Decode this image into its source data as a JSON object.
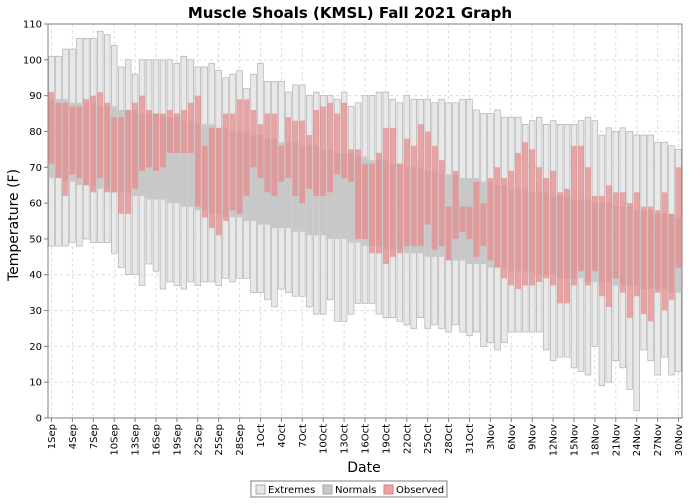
{
  "chart_data": {
    "type": "bar",
    "title": "Muscle Shoals (KMSL) Fall 2021 Graph",
    "xlabel": "Date",
    "ylabel": "Temperature (F)",
    "ylim": [
      0,
      110
    ],
    "yticks": [
      0,
      10,
      20,
      30,
      40,
      50,
      60,
      70,
      80,
      90,
      100,
      110
    ],
    "grid": true,
    "legend_position": "bottom-center",
    "colors": {
      "extremes_fill": "#e8e8e8",
      "extremes_stroke": "#a8a8a8",
      "normals_fill": "#c8c8c8",
      "observed_fill": "#e88888",
      "observed_opacity": 0.7,
      "grid": "#dcdcdc"
    },
    "categories": [
      "1Sep",
      "2Sep",
      "3Sep",
      "4Sep",
      "5Sep",
      "6Sep",
      "7Sep",
      "8Sep",
      "9Sep",
      "10Sep",
      "11Sep",
      "12Sep",
      "13Sep",
      "14Sep",
      "15Sep",
      "16Sep",
      "17Sep",
      "18Sep",
      "19Sep",
      "20Sep",
      "21Sep",
      "22Sep",
      "23Sep",
      "24Sep",
      "25Sep",
      "26Sep",
      "27Sep",
      "28Sep",
      "29Sep",
      "30Sep",
      "1Oct",
      "2Oct",
      "3Oct",
      "4Oct",
      "5Oct",
      "6Oct",
      "7Oct",
      "8Oct",
      "9Oct",
      "10Oct",
      "11Oct",
      "12Oct",
      "13Oct",
      "14Oct",
      "15Oct",
      "16Oct",
      "17Oct",
      "18Oct",
      "19Oct",
      "20Oct",
      "21Oct",
      "22Oct",
      "23Oct",
      "24Oct",
      "25Oct",
      "26Oct",
      "27Oct",
      "28Oct",
      "29Oct",
      "30Oct",
      "31Oct",
      "1Nov",
      "2Nov",
      "3Nov",
      "4Nov",
      "5Nov",
      "6Nov",
      "7Nov",
      "8Nov",
      "9Nov",
      "10Nov",
      "11Nov",
      "12Nov",
      "13Nov",
      "14Nov",
      "15Nov",
      "16Nov",
      "17Nov",
      "18Nov",
      "19Nov",
      "20Nov",
      "21Nov",
      "22Nov",
      "23Nov",
      "24Nov",
      "25Nov",
      "26Nov",
      "27Nov",
      "28Nov",
      "29Nov",
      "30Nov"
    ],
    "xtick_labels": [
      "1Sep",
      "4Sep",
      "7Sep",
      "10Sep",
      "13Sep",
      "16Sep",
      "19Sep",
      "22Sep",
      "25Sep",
      "28Sep",
      "1Oct",
      "4Oct",
      "7Oct",
      "10Oct",
      "13Oct",
      "16Oct",
      "19Oct",
      "22Oct",
      "25Oct",
      "28Oct",
      "31Oct",
      "3Nov",
      "6Nov",
      "9Nov",
      "12Nov",
      "15Nov",
      "18Nov",
      "21Nov",
      "24Nov",
      "27Nov",
      "30Nov"
    ],
    "series": [
      {
        "name": "Extremes",
        "high": [
          101,
          101,
          103,
          103,
          106,
          106,
          106,
          108,
          107,
          104,
          98,
          100,
          96,
          100,
          100,
          100,
          100,
          100,
          99,
          101,
          100,
          98,
          98,
          99,
          97,
          95,
          96,
          97,
          92,
          96,
          99,
          94,
          94,
          94,
          91,
          93,
          93,
          90,
          91,
          90,
          90,
          89,
          91,
          87,
          88,
          90,
          90,
          91,
          91,
          89,
          88,
          90,
          89,
          89,
          89,
          88,
          89,
          88,
          88,
          89,
          89,
          86,
          85,
          85,
          86,
          84,
          84,
          84,
          82,
          83,
          84,
          82,
          83,
          82,
          82,
          82,
          83,
          84,
          83,
          79,
          81,
          80,
          81,
          80,
          79,
          79,
          79,
          77,
          77,
          76,
          75
        ],
        "low": [
          48,
          48,
          48,
          49,
          48,
          50,
          49,
          49,
          49,
          46,
          42,
          40,
          40,
          37,
          43,
          41,
          36,
          38,
          37,
          36,
          38,
          37,
          38,
          38,
          37,
          39,
          38,
          39,
          39,
          35,
          35,
          33,
          31,
          36,
          35,
          34,
          34,
          31,
          29,
          29,
          33,
          27,
          27,
          29,
          32,
          32,
          32,
          29,
          28,
          28,
          27,
          26,
          25,
          28,
          25,
          26,
          25,
          24,
          26,
          24,
          23,
          24,
          20,
          21,
          19,
          21,
          24,
          24,
          24,
          24,
          24,
          19,
          16,
          17,
          17,
          14,
          13,
          12,
          20,
          9,
          10,
          16,
          14,
          8,
          2,
          19,
          16,
          12,
          17,
          12,
          13
        ]
      },
      {
        "name": "Normals",
        "high": [
          89,
          89,
          89,
          88,
          88,
          88,
          88,
          87,
          87,
          87,
          86,
          86,
          86,
          85,
          85,
          85,
          84,
          84,
          84,
          83,
          83,
          82,
          82,
          82,
          81,
          81,
          80,
          80,
          80,
          79,
          79,
          78,
          78,
          77,
          77,
          77,
          76,
          76,
          76,
          75,
          75,
          74,
          74,
          74,
          73,
          73,
          72,
          72,
          72,
          71,
          71,
          70,
          70,
          70,
          69,
          69,
          68,
          68,
          68,
          67,
          67,
          67,
          66,
          66,
          65,
          65,
          64,
          64,
          64,
          63,
          63,
          63,
          62,
          62,
          62,
          61,
          61,
          61,
          60,
          60,
          60,
          59,
          59,
          59,
          58,
          58,
          58,
          57,
          57,
          57,
          56
        ],
        "low": [
          67,
          67,
          66,
          66,
          65,
          65,
          65,
          64,
          64,
          63,
          63,
          63,
          62,
          62,
          61,
          61,
          61,
          60,
          60,
          59,
          59,
          58,
          58,
          57,
          57,
          56,
          56,
          56,
          55,
          55,
          54,
          54,
          53,
          53,
          53,
          52,
          52,
          51,
          51,
          51,
          50,
          50,
          50,
          49,
          49,
          48,
          48,
          48,
          47,
          47,
          47,
          46,
          46,
          46,
          45,
          45,
          45,
          44,
          44,
          44,
          43,
          43,
          43,
          42,
          42,
          42,
          41,
          41,
          41,
          41,
          40,
          40,
          40,
          39,
          39,
          39,
          39,
          38,
          38,
          38,
          38,
          37,
          37,
          37,
          37,
          36,
          36,
          36,
          36,
          35,
          35
        ]
      },
      {
        "name": "Observed",
        "high": [
          91,
          88,
          88,
          87,
          87,
          89,
          90,
          91,
          88,
          84,
          84,
          86,
          88,
          90,
          86,
          85,
          85,
          86,
          85,
          86,
          88,
          90,
          76,
          81,
          81,
          85,
          85,
          89,
          89,
          86,
          82,
          85,
          85,
          76,
          84,
          83,
          83,
          79,
          86,
          87,
          88,
          85,
          88,
          75,
          75,
          71,
          71,
          74,
          81,
          81,
          71,
          78,
          76,
          82,
          80,
          76,
          72,
          59,
          69,
          59,
          59,
          66,
          60,
          67,
          70,
          67,
          69,
          74,
          77,
          75,
          70,
          67,
          69,
          63,
          64,
          76,
          76,
          70,
          62,
          62,
          65,
          63,
          63,
          60,
          63,
          59,
          59,
          58,
          63,
          57,
          70
        ],
        "low": [
          71,
          67,
          62,
          68,
          67,
          65,
          63,
          67,
          63,
          63,
          57,
          57,
          64,
          69,
          70,
          69,
          70,
          74,
          74,
          74,
          74,
          59,
          56,
          53,
          51,
          55,
          58,
          57,
          62,
          70,
          67,
          63,
          62,
          66,
          67,
          62,
          60,
          64,
          62,
          62,
          63,
          68,
          67,
          66,
          50,
          50,
          46,
          46,
          43,
          45,
          46,
          48,
          48,
          48,
          54,
          47,
          48,
          44,
          50,
          52,
          50,
          45,
          48,
          44,
          42,
          39,
          37,
          36,
          37,
          37,
          38,
          39,
          37,
          32,
          32,
          37,
          41,
          37,
          41,
          34,
          31,
          39,
          35,
          28,
          34,
          29,
          27,
          35,
          30,
          33,
          42
        ]
      }
    ]
  },
  "legend": {
    "items": [
      {
        "label": "Extremes"
      },
      {
        "label": "Normals"
      },
      {
        "label": "Observed"
      }
    ]
  }
}
